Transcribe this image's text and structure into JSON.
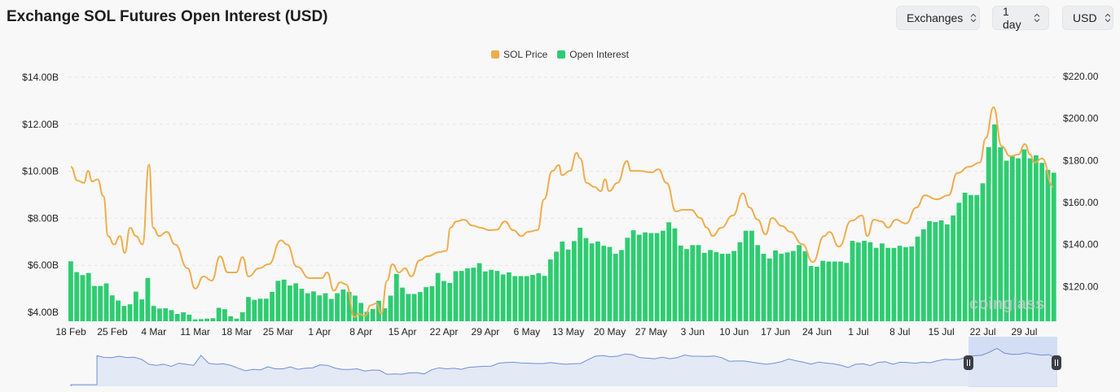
{
  "header": {
    "title": "Exchange SOL Futures Open Interest (USD)"
  },
  "controls": {
    "exchanges": "Exchanges",
    "interval": "1 day",
    "currency": "USD"
  },
  "watermark": "coinglass",
  "colors": {
    "price": "#f0ad4e",
    "open_interest": "#2ecc71",
    "navigator_line": "#6f8fdc",
    "navigator_fill": "#dfe6f4",
    "navigator_sel": "#c9d6f3"
  },
  "chart_data": {
    "type": "bar+line",
    "title": "Exchange SOL Futures Open Interest (USD)",
    "legend": [
      "SOL Price",
      "Open Interest"
    ],
    "legend_position": "top-center",
    "x_start": "18 Feb",
    "x_tick_labels": [
      "18 Feb",
      "25 Feb",
      "4 Mar",
      "11 Mar",
      "18 Mar",
      "25 Mar",
      "1 Apr",
      "8 Apr",
      "15 Apr",
      "22 Apr",
      "29 Apr",
      "6 May",
      "13 May",
      "20 May",
      "27 May",
      "3 Jun",
      "10 Jun",
      "17 Jun",
      "24 Jun",
      "1 Jul",
      "8 Jul",
      "15 Jul",
      "22 Jul",
      "29 Jul"
    ],
    "left_axis": {
      "ticks": [
        "$4.00B",
        "$6.00B",
        "$8.00B",
        "$10.00B",
        "$12.00B",
        "$14.00B"
      ],
      "tick_values": [
        4,
        6,
        8,
        10,
        12,
        14
      ],
      "range": [
        3.62,
        14
      ],
      "unit": "USD billions"
    },
    "right_axis": {
      "ticks": [
        "$120.00",
        "$140.00",
        "$160.00",
        "$180.00",
        "$200.00",
        "$220.00"
      ],
      "tick_values": [
        120,
        140,
        160,
        180,
        200,
        220
      ],
      "range": [
        103.5,
        220
      ],
      "unit": "USD"
    },
    "grid": true,
    "open_interest_billions": [
      6.17,
      5.71,
      5.58,
      5.67,
      5.12,
      5.12,
      5.23,
      4.72,
      4.5,
      4.27,
      4.34,
      4.88,
      4.55,
      5.46,
      4.27,
      4.16,
      4.17,
      4.09,
      3.93,
      4.0,
      3.9,
      3.7,
      3.71,
      3.73,
      3.75,
      4.19,
      4.13,
      3.83,
      3.73,
      4.0,
      4.65,
      4.53,
      4.58,
      4.58,
      4.87,
      5.34,
      5.39,
      5.14,
      5.23,
      5.0,
      4.81,
      4.89,
      4.72,
      4.81,
      4.57,
      4.81,
      4.97,
      4.87,
      4.71,
      4.4,
      4.02,
      4.14,
      4.49,
      4.17,
      4.71,
      5.63,
      5.05,
      4.78,
      4.78,
      4.86,
      5.07,
      5.11,
      5.67,
      5.33,
      5.25,
      5.75,
      5.76,
      5.87,
      5.9,
      6.09,
      5.74,
      5.81,
      5.76,
      5.61,
      5.7,
      5.54,
      5.54,
      5.54,
      5.59,
      5.66,
      5.55,
      6.25,
      6.58,
      7.01,
      6.67,
      7.03,
      7.6,
      7.16,
      6.93,
      7.01,
      6.83,
      6.78,
      6.49,
      6.65,
      7.17,
      7.49,
      7.3,
      7.4,
      7.37,
      7.37,
      7.47,
      7.83,
      7.57,
      6.84,
      6.69,
      6.86,
      6.86,
      6.53,
      6.65,
      6.56,
      6.49,
      6.49,
      6.61,
      6.98,
      7.47,
      7.47,
      6.86,
      6.49,
      6.29,
      6.63,
      6.49,
      6.55,
      6.61,
      6.86,
      6.6,
      5.97,
      5.94,
      6.19,
      6.16,
      6.16,
      6.16,
      6.1,
      7.04,
      6.97,
      7.04,
      6.98,
      6.74,
      6.93,
      6.74,
      6.74,
      6.83,
      6.77,
      6.8,
      7.22,
      7.53,
      7.88,
      7.84,
      7.91,
      7.74,
      8.12,
      8.66,
      9.09,
      8.99,
      8.99,
      9.49,
      11.03,
      11.99,
      11.02,
      10.45,
      10.64,
      10.55,
      10.93,
      10.55,
      10.68,
      10.36,
      10.06,
      9.94
    ],
    "sol_price": [
      [
        0,
        177
      ],
      [
        1.1,
        170.4
      ],
      [
        2.2,
        169.3
      ],
      [
        2.9,
        175
      ],
      [
        3.6,
        170
      ],
      [
        4.5,
        171
      ],
      [
        5.5,
        163
      ],
      [
        6.3,
        144
      ],
      [
        7.3,
        140
      ],
      [
        8.3,
        144
      ],
      [
        9.1,
        136
      ],
      [
        10,
        148
      ],
      [
        11,
        144
      ],
      [
        12.1,
        140
      ],
      [
        13.2,
        178
      ],
      [
        13.9,
        148
      ],
      [
        14.9,
        144
      ],
      [
        16.2,
        146
      ],
      [
        17.6,
        140
      ],
      [
        19.7,
        128.7
      ],
      [
        21,
        119
      ],
      [
        22.4,
        124.8
      ],
      [
        23.8,
        122.8
      ],
      [
        25.2,
        134.4
      ],
      [
        26.5,
        126.7
      ],
      [
        27.9,
        126.7
      ],
      [
        29,
        134
      ],
      [
        30,
        124.8
      ],
      [
        31.8,
        128.7
      ],
      [
        33.4,
        130.6
      ],
      [
        35.5,
        142
      ],
      [
        36.5,
        140
      ],
      [
        38.2,
        129.4
      ],
      [
        40.3,
        124
      ],
      [
        42.4,
        124
      ],
      [
        43.3,
        126.7
      ],
      [
        44.4,
        118
      ],
      [
        45.5,
        122
      ],
      [
        46.5,
        121
      ],
      [
        47.9,
        105.4
      ],
      [
        48.6,
        107
      ],
      [
        49.7,
        106
      ],
      [
        50.6,
        111
      ],
      [
        51.6,
        112
      ],
      [
        52.4,
        107
      ],
      [
        53.4,
        122.8
      ],
      [
        54.3,
        130.6
      ],
      [
        55.4,
        126.7
      ],
      [
        56.4,
        128.7
      ],
      [
        57.5,
        124.8
      ],
      [
        58.9,
        132.5
      ],
      [
        60.2,
        134.4
      ],
      [
        62.3,
        136.4
      ],
      [
        63.4,
        137
      ],
      [
        64.1,
        148
      ],
      [
        65.1,
        151
      ],
      [
        66.4,
        151.8
      ],
      [
        67.8,
        149
      ],
      [
        69.2,
        148
      ],
      [
        70.6,
        146.8
      ],
      [
        71.9,
        147
      ],
      [
        73.3,
        151
      ],
      [
        74.7,
        146.8
      ],
      [
        76.1,
        144
      ],
      [
        77.2,
        146
      ],
      [
        78.8,
        146.8
      ],
      [
        79.9,
        161.5
      ],
      [
        81.3,
        175
      ],
      [
        82.4,
        177.8
      ],
      [
        82.9,
        173
      ],
      [
        84.3,
        175
      ],
      [
        85.4,
        183.6
      ],
      [
        86,
        181
      ],
      [
        87.1,
        169.3
      ],
      [
        88.4,
        167.4
      ],
      [
        89.5,
        165.4
      ],
      [
        90.2,
        171
      ],
      [
        90.9,
        165.4
      ],
      [
        92.3,
        169.3
      ],
      [
        93.9,
        179.7
      ],
      [
        94.6,
        175
      ],
      [
        96,
        175
      ],
      [
        98.1,
        174.3
      ],
      [
        99.2,
        175.8
      ],
      [
        100.6,
        169.3
      ],
      [
        102.2,
        155.7
      ],
      [
        103.3,
        156.5
      ],
      [
        104.7,
        156.5
      ],
      [
        106.3,
        152.6
      ],
      [
        107.4,
        148
      ],
      [
        108.4,
        144
      ],
      [
        109.8,
        148
      ],
      [
        111.8,
        153.8
      ],
      [
        113.5,
        164.3
      ],
      [
        114.6,
        157.6
      ],
      [
        116,
        151.8
      ],
      [
        117.3,
        144.8
      ],
      [
        118.4,
        152.6
      ],
      [
        120.1,
        148.8
      ],
      [
        121.5,
        146
      ],
      [
        123.5,
        140.2
      ],
      [
        125.3,
        131.7
      ],
      [
        127.2,
        144
      ],
      [
        128.1,
        146
      ],
      [
        129.7,
        139
      ],
      [
        131.8,
        151.3
      ],
      [
        133.6,
        153.8
      ],
      [
        134.5,
        144
      ],
      [
        135.6,
        151.8
      ],
      [
        136.9,
        151
      ],
      [
        138,
        148
      ],
      [
        139.3,
        151.8
      ],
      [
        141,
        150
      ],
      [
        142.8,
        157.6
      ],
      [
        144.2,
        163.4
      ],
      [
        146.2,
        161.5
      ],
      [
        148.2,
        163.4
      ],
      [
        149.7,
        174
      ],
      [
        151.7,
        177
      ],
      [
        153.5,
        179
      ],
      [
        154.5,
        190.6
      ],
      [
        155.8,
        205.3
      ],
      [
        157.2,
        186.7
      ],
      [
        158.6,
        182
      ],
      [
        160,
        182.8
      ],
      [
        161.1,
        187.8
      ],
      [
        162,
        182.8
      ],
      [
        162.7,
        179
      ],
      [
        164,
        180.9
      ],
      [
        165.9,
        167.4
      ]
    ]
  }
}
